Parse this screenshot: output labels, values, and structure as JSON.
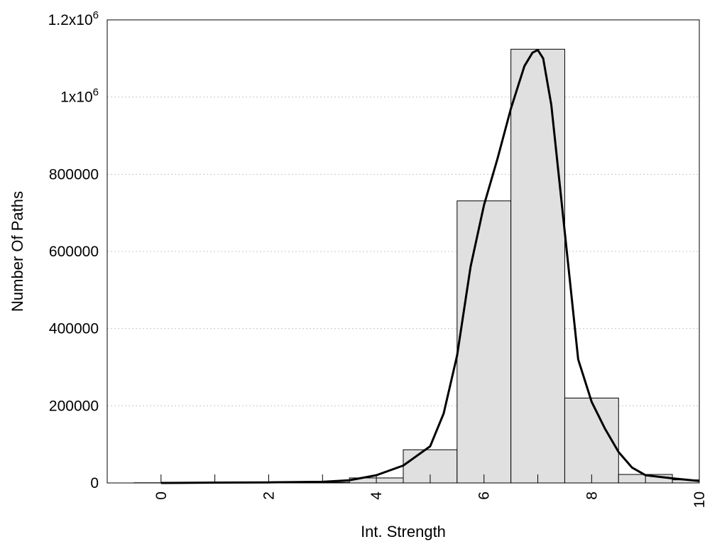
{
  "chart_data": {
    "type": "bar",
    "title": "",
    "xlabel": "Int. Strength",
    "ylabel": "Number Of Paths",
    "xlim": [
      -1,
      10
    ],
    "ylim": [
      0,
      1200000
    ],
    "grid": true,
    "x_ticks": [
      "0",
      "2",
      "4",
      "6",
      "8",
      "10"
    ],
    "y_ticks": [
      {
        "value": 0,
        "label": "0"
      },
      {
        "value": 200000,
        "label": "200000"
      },
      {
        "value": 400000,
        "label": "400000"
      },
      {
        "value": 600000,
        "label": "600000"
      },
      {
        "value": 800000,
        "label": "800000"
      },
      {
        "value": 1000000,
        "label": "1x10",
        "sup": "6"
      },
      {
        "value": 1200000,
        "label": "1.2x10",
        "sup": "6"
      }
    ],
    "categories": [
      "0",
      "1",
      "2",
      "3",
      "4",
      "5",
      "6",
      "7",
      "8",
      "9",
      "10"
    ],
    "values": [
      500,
      500,
      1000,
      1500,
      13000,
      86000,
      731000,
      1124000,
      220000,
      22000,
      8000
    ],
    "bar_width": 1,
    "bar_color": "#e0e0e0",
    "curve": {
      "x": [
        0,
        1,
        2,
        3,
        3.5,
        4,
        4.5,
        5,
        5.25,
        5.5,
        5.75,
        6,
        6.25,
        6.5,
        6.75,
        6.9,
        7,
        7.1,
        7.25,
        7.5,
        7.75,
        8,
        8.25,
        8.5,
        8.75,
        9,
        9.5,
        10
      ],
      "y": [
        0,
        1000,
        1500,
        3000,
        7000,
        20000,
        45000,
        95000,
        180000,
        330000,
        560000,
        720000,
        840000,
        970000,
        1080000,
        1115000,
        1122000,
        1100000,
        980000,
        650000,
        320000,
        210000,
        140000,
        80000,
        40000,
        20000,
        12000,
        5000
      ]
    }
  }
}
